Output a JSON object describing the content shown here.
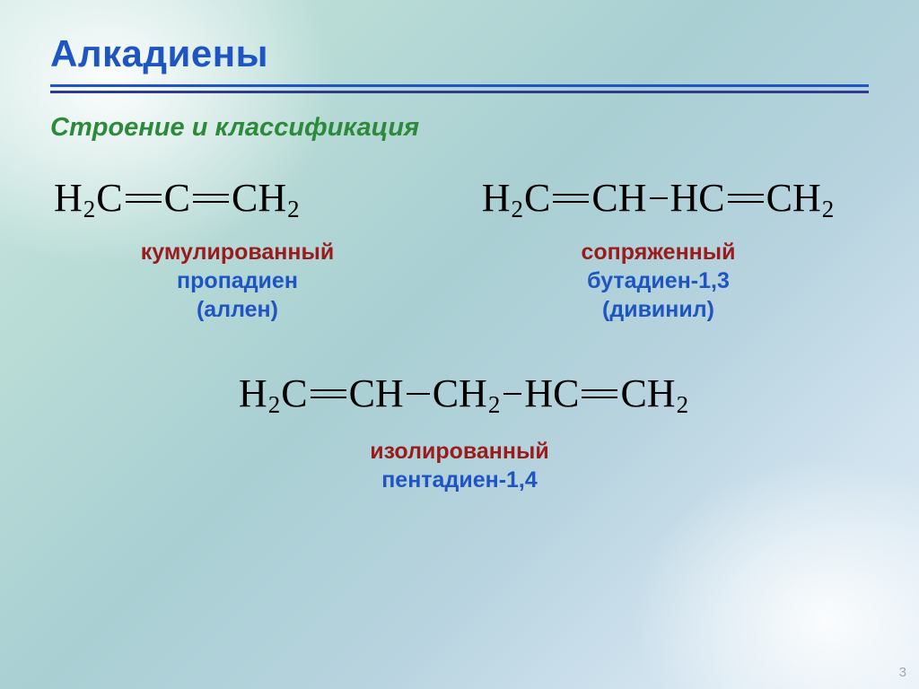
{
  "colors": {
    "title": "#1f55c3",
    "rule_top": "#1f55c3",
    "rule_bottom": "#2f3b8c",
    "subtitle": "#2c8a3a",
    "type_label": "#9a1b1b",
    "name_label": "#1f55c3",
    "formula": "#000000",
    "pagenum": "#a7a7a7"
  },
  "title": "Алкадиены",
  "subtitle": "Строение и классификация",
  "compounds": {
    "propadiene": {
      "formula_segments": [
        {
          "t": "atom",
          "v": "H"
        },
        {
          "t": "sub",
          "v": "2"
        },
        {
          "t": "atom",
          "v": "C"
        },
        {
          "t": "bond",
          "v": "double"
        },
        {
          "t": "atom",
          "v": "C"
        },
        {
          "t": "bond",
          "v": "double"
        },
        {
          "t": "atom",
          "v": "CH"
        },
        {
          "t": "sub",
          "v": "2"
        }
      ],
      "type": "кумулированный",
      "name": "пропадиен",
      "alt": "(аллен)"
    },
    "butadiene": {
      "formula_segments": [
        {
          "t": "atom",
          "v": "H"
        },
        {
          "t": "sub",
          "v": "2"
        },
        {
          "t": "atom",
          "v": "C"
        },
        {
          "t": "bond",
          "v": "double"
        },
        {
          "t": "atom",
          "v": "CH"
        },
        {
          "t": "bond",
          "v": "short"
        },
        {
          "t": "atom",
          "v": "HC"
        },
        {
          "t": "bond",
          "v": "double"
        },
        {
          "t": "atom",
          "v": "CH"
        },
        {
          "t": "sub",
          "v": "2"
        }
      ],
      "type": "сопряженный",
      "name": "бутадиен-1,3",
      "alt": "(дивинил)"
    },
    "pentadiene": {
      "formula_segments": [
        {
          "t": "atom",
          "v": "H"
        },
        {
          "t": "sub",
          "v": "2"
        },
        {
          "t": "atom",
          "v": "C"
        },
        {
          "t": "bond",
          "v": "double"
        },
        {
          "t": "atom",
          "v": "CH"
        },
        {
          "t": "bond",
          "v": "single"
        },
        {
          "t": "atom",
          "v": "CH"
        },
        {
          "t": "sub",
          "v": "2"
        },
        {
          "t": "bond",
          "v": "short"
        },
        {
          "t": "atom",
          "v": "HC"
        },
        {
          "t": "bond",
          "v": "double"
        },
        {
          "t": "atom",
          "v": "CH"
        },
        {
          "t": "sub",
          "v": "2"
        }
      ],
      "type": "изолированный",
      "name": "пентадиен-1,4",
      "alt": ""
    }
  },
  "page_number": "3"
}
